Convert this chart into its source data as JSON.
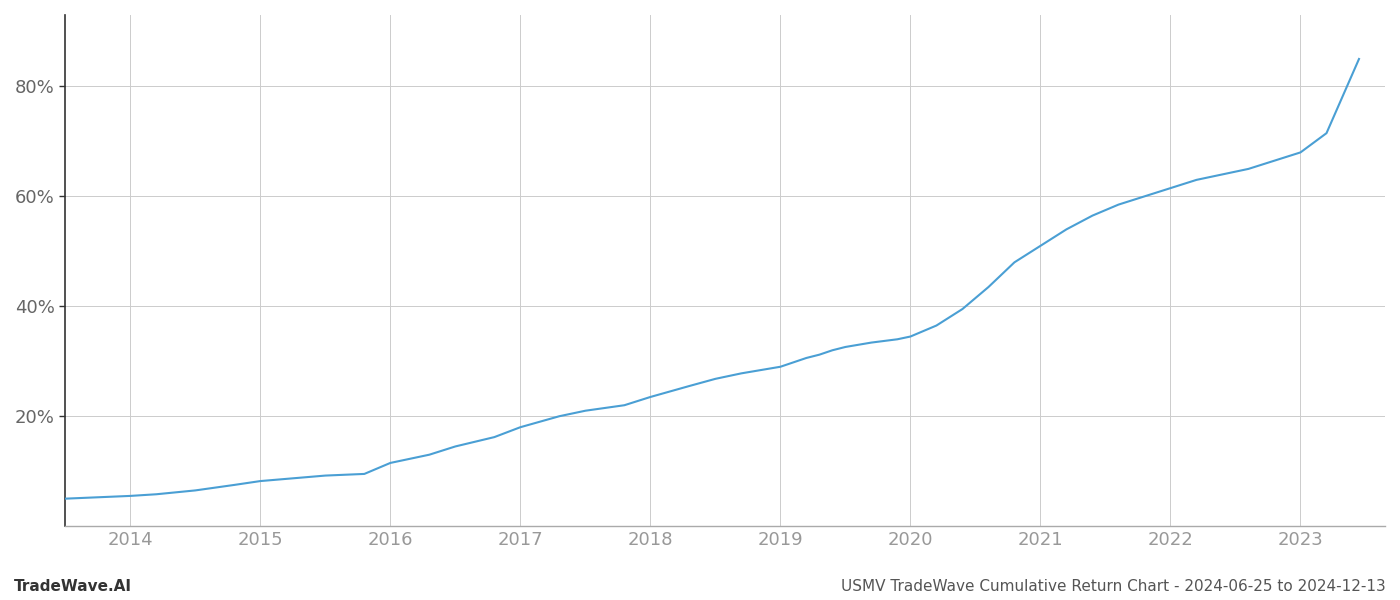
{
  "title": "USMV TradeWave Cumulative Return Chart - 2024-06-25 to 2024-12-13",
  "watermark": "TradeWave.AI",
  "line_color": "#4a9fd4",
  "background_color": "#ffffff",
  "grid_color": "#cccccc",
  "x_tick_color": "#999999",
  "y_tick_color": "#666666",
  "spine_color": "#333333",
  "x_ticks": [
    2014,
    2015,
    2016,
    2017,
    2018,
    2019,
    2020,
    2021,
    2022,
    2023
  ],
  "y_ticks": [
    0.2,
    0.4,
    0.6,
    0.8
  ],
  "y_tick_labels": [
    "20%",
    "40%",
    "60%",
    "80%"
  ],
  "xlim": [
    2013.5,
    2023.65
  ],
  "ylim": [
    0.0,
    0.93
  ],
  "data_x": [
    2013.5,
    2014.0,
    2014.2,
    2014.5,
    2014.8,
    2015.0,
    2015.3,
    2015.5,
    2015.8,
    2016.0,
    2016.3,
    2016.5,
    2016.8,
    2017.0,
    2017.3,
    2017.5,
    2017.8,
    2018.0,
    2018.3,
    2018.5,
    2018.7,
    2019.0,
    2019.1,
    2019.2,
    2019.3,
    2019.4,
    2019.5,
    2019.7,
    2019.9,
    2020.0,
    2020.2,
    2020.4,
    2020.6,
    2020.8,
    2021.0,
    2021.2,
    2021.4,
    2021.5,
    2021.6,
    2021.8,
    2022.0,
    2022.2,
    2022.4,
    2022.6,
    2022.8,
    2023.0,
    2023.2,
    2023.45
  ],
  "data_y": [
    0.05,
    0.055,
    0.058,
    0.065,
    0.075,
    0.082,
    0.088,
    0.092,
    0.095,
    0.115,
    0.13,
    0.145,
    0.162,
    0.18,
    0.2,
    0.21,
    0.22,
    0.235,
    0.255,
    0.268,
    0.278,
    0.29,
    0.298,
    0.306,
    0.312,
    0.32,
    0.326,
    0.334,
    0.34,
    0.345,
    0.365,
    0.395,
    0.435,
    0.48,
    0.51,
    0.54,
    0.565,
    0.575,
    0.585,
    0.6,
    0.615,
    0.63,
    0.64,
    0.65,
    0.665,
    0.68,
    0.715,
    0.85
  ],
  "line_width": 1.5,
  "tick_fontsize": 13,
  "footer_fontsize": 11
}
